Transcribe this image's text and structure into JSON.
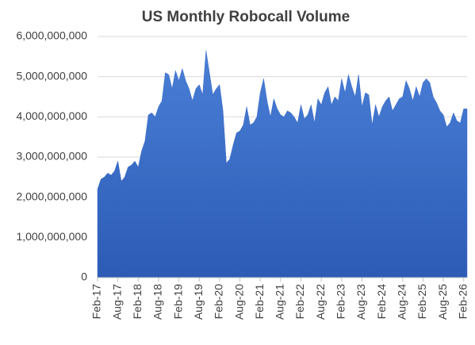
{
  "chart_data": {
    "type": "area",
    "title": "US Monthly Robocall Volume",
    "color": "#3a6cc8",
    "grid": true,
    "categories": [
      "Feb-17",
      null,
      null,
      null,
      null,
      null,
      "Aug-17",
      null,
      null,
      null,
      null,
      null,
      "Feb-18",
      null,
      null,
      null,
      null,
      null,
      "Aug-18",
      null,
      null,
      null,
      null,
      null,
      "Feb-19",
      null,
      null,
      null,
      null,
      null,
      "Aug-19",
      null,
      null,
      null,
      null,
      null,
      "Feb-20",
      null,
      null,
      null,
      null,
      null,
      "Aug-20",
      null,
      null,
      null,
      null,
      null,
      "Feb-21",
      null,
      null,
      null,
      null,
      null,
      "Aug-21",
      null,
      null,
      null,
      null,
      null,
      "Feb-22",
      null,
      null,
      null,
      null,
      null,
      "Aug-22",
      null,
      null,
      null,
      null,
      null,
      "Feb-23",
      null,
      null,
      null,
      null,
      null,
      "Aug-23",
      null,
      null,
      null,
      null,
      null,
      "Feb-24",
      null,
      null,
      null,
      null,
      null,
      "Aug-24",
      null,
      null,
      null,
      null,
      null,
      "Feb-25",
      null,
      null,
      null,
      null,
      null,
      "Aug-25",
      null,
      null,
      null,
      null,
      null,
      "Feb-26",
      null
    ],
    "values": [
      2200000000,
      2450000000,
      2500000000,
      2600000000,
      2550000000,
      2650000000,
      2900000000,
      2400000000,
      2500000000,
      2750000000,
      2800000000,
      2900000000,
      2750000000,
      3150000000,
      3400000000,
      4050000000,
      4100000000,
      4000000000,
      4250000000,
      4400000000,
      5100000000,
      5050000000,
      4700000000,
      5150000000,
      4900000000,
      5200000000,
      4900000000,
      4700000000,
      4400000000,
      4700000000,
      4800000000,
      4550000000,
      5650000000,
      5100000000,
      4550000000,
      4700000000,
      4800000000,
      4150000000,
      2850000000,
      2950000000,
      3300000000,
      3600000000,
      3650000000,
      3800000000,
      4250000000,
      3800000000,
      3850000000,
      4000000000,
      4600000000,
      4950000000,
      4400000000,
      4000000000,
      4450000000,
      4200000000,
      4050000000,
      4000000000,
      4150000000,
      4100000000,
      4000000000,
      3850000000,
      4300000000,
      3950000000,
      4050000000,
      4300000000,
      3850000000,
      4450000000,
      4300000000,
      4600000000,
      4750000000,
      4300000000,
      4500000000,
      4400000000,
      4950000000,
      4600000000,
      5050000000,
      4750000000,
      4500000000,
      5050000000,
      4250000000,
      4600000000,
      4550000000,
      3800000000,
      4300000000,
      4000000000,
      4250000000,
      4400000000,
      4500000000,
      4150000000,
      4300000000,
      4450000000,
      4500000000,
      4900000000,
      4700000000,
      4400000000,
      4750000000,
      4500000000,
      4850000000,
      4950000000,
      4850000000,
      4500000000,
      4350000000,
      4150000000,
      4050000000,
      3750000000,
      3850000000,
      4100000000,
      3900000000,
      3850000000,
      4200000000,
      4200000000
    ],
    "ylim": [
      0,
      6000000000
    ],
    "yticks": [
      0,
      {
        "value": 1000000000,
        "label": "1,000,000,000"
      },
      {
        "value": 2000000000,
        "label": "2,000,000,000"
      },
      {
        "value": 3000000000,
        "label": "3,000,000,000"
      },
      {
        "value": 4000000000,
        "label": "4,000,000,000"
      },
      {
        "value": 5000000000,
        "label": "5,000,000,000"
      },
      {
        "value": 6000000000,
        "label": "6,000,000,000"
      }
    ]
  }
}
